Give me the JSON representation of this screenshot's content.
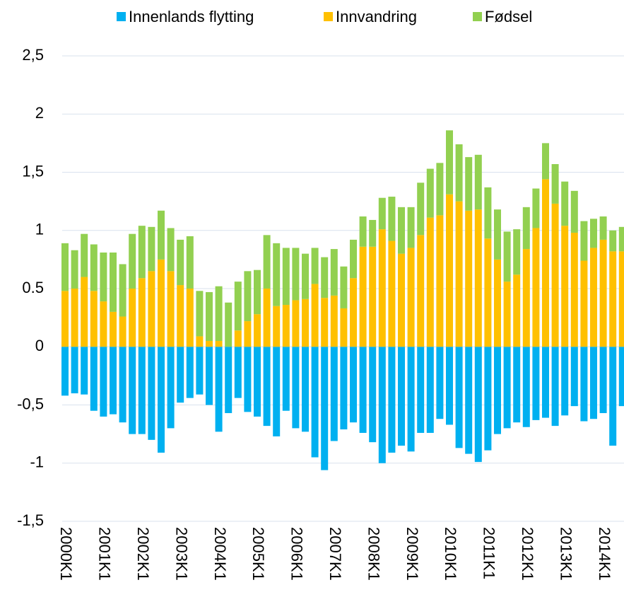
{
  "chart_data": {
    "type": "stacked_bar",
    "categories": [
      "2000K1",
      null,
      null,
      null,
      "2001K1",
      null,
      null,
      null,
      "2002K1",
      null,
      null,
      null,
      "2003K1",
      null,
      null,
      null,
      "2004K1",
      null,
      null,
      null,
      "2005K1",
      null,
      null,
      null,
      "2006K1",
      null,
      null,
      null,
      "2007K1",
      null,
      null,
      null,
      "2008K1",
      null,
      null,
      null,
      "2009K1",
      null,
      null,
      null,
      "2010K1",
      null,
      null,
      null,
      "2011K1",
      null,
      null,
      null,
      "2012K1",
      null,
      null,
      null,
      "2013K1",
      null,
      null,
      null,
      "2014K1",
      null,
      null
    ],
    "series": [
      {
        "name": "Innenlands flytting",
        "color": "#00b0f0",
        "values": [
          -0.42,
          -0.4,
          -0.41,
          -0.55,
          -0.6,
          -0.58,
          -0.65,
          -0.75,
          -0.75,
          -0.8,
          -0.91,
          -0.7,
          -0.48,
          -0.44,
          -0.41,
          -0.5,
          -0.73,
          -0.57,
          -0.44,
          -0.56,
          -0.6,
          -0.68,
          -0.77,
          -0.55,
          -0.7,
          -0.73,
          -0.95,
          -1.06,
          -0.81,
          -0.71,
          -0.65,
          -0.74,
          -0.82,
          -1.0,
          -0.91,
          -0.85,
          -0.9,
          -0.74,
          -0.74,
          -0.62,
          -0.67,
          -0.87,
          -0.92,
          -0.99,
          -0.89,
          -0.75,
          -0.7,
          -0.65,
          -0.69,
          -0.63,
          -0.61,
          -0.68,
          -0.59,
          -0.51,
          -0.64,
          -0.62,
          -0.57,
          -0.85,
          -0.51
        ]
      },
      {
        "name": "Innvandring",
        "color": "#ffc000",
        "values": [
          0.48,
          0.5,
          0.6,
          0.48,
          0.39,
          0.3,
          0.26,
          0.5,
          0.59,
          0.65,
          0.75,
          0.65,
          0.53,
          0.5,
          0.09,
          0.05,
          0.05,
          0.0,
          0.14,
          0.22,
          0.28,
          0.5,
          0.35,
          0.36,
          0.4,
          0.41,
          0.54,
          0.42,
          0.44,
          0.33,
          0.59,
          0.86,
          0.86,
          1.01,
          0.91,
          0.8,
          0.85,
          0.96,
          1.11,
          1.13,
          1.31,
          1.25,
          1.17,
          1.18,
          0.93,
          0.75,
          0.56,
          0.62,
          0.84,
          1.02,
          1.44,
          1.23,
          1.04,
          0.98,
          0.74,
          0.85,
          0.92,
          0.82,
          0.82
        ]
      },
      {
        "name": "Fødsel",
        "color": "#92d050",
        "values": [
          0.41,
          0.33,
          0.37,
          0.4,
          0.42,
          0.51,
          0.45,
          0.47,
          0.45,
          0.38,
          0.42,
          0.37,
          0.39,
          0.45,
          0.39,
          0.42,
          0.47,
          0.38,
          0.42,
          0.43,
          0.38,
          0.46,
          0.54,
          0.49,
          0.45,
          0.39,
          0.31,
          0.35,
          0.4,
          0.36,
          0.33,
          0.26,
          0.23,
          0.27,
          0.38,
          0.4,
          0.35,
          0.45,
          0.42,
          0.45,
          0.55,
          0.49,
          0.46,
          0.47,
          0.44,
          0.43,
          0.43,
          0.39,
          0.36,
          0.34,
          0.31,
          0.34,
          0.38,
          0.36,
          0.34,
          0.25,
          0.2,
          0.18,
          0.21
        ]
      }
    ],
    "ylim": [
      -1.5,
      2.5
    ],
    "yticks": [
      {
        "value": 2.5,
        "label": "2,5"
      },
      2,
      {
        "value": 1.5,
        "label": "1,5"
      },
      1,
      0.5,
      0,
      {
        "value": -0.5,
        "label": "-0,5"
      },
      -1,
      {
        "value": -1.5,
        "label": "-1,5"
      }
    ],
    "grid": true,
    "legend": "top"
  }
}
